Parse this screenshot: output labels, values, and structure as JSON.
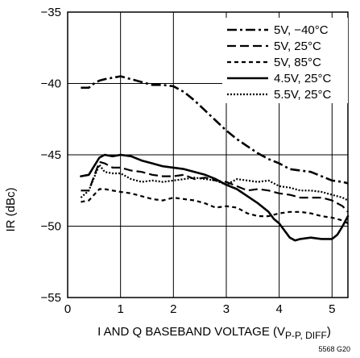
{
  "chart_data": {
    "type": "line",
    "title": "",
    "xlabel_main": "I AND Q BASEBAND VOLTAGE (V",
    "xlabel_sub": "P-P, DIFF",
    "xlabel_end": ")",
    "ylabel": "IR (dBc)",
    "xlim": [
      0,
      5.3
    ],
    "ylim": [
      -55,
      -35
    ],
    "xticks": [
      0,
      1,
      2,
      3,
      4,
      5
    ],
    "yticks": [
      -55,
      -50,
      -45,
      -40,
      -35
    ],
    "xtick_labels": [
      "0",
      "1",
      "2",
      "3",
      "4",
      "5"
    ],
    "ytick_labels": [
      "−55",
      "−50",
      "−45",
      "−40",
      "−35"
    ],
    "grid": true,
    "legend_position": "top-right",
    "figure_code": "5568 G20",
    "series": [
      {
        "name": "5V, −40°C",
        "dash": "dashdot",
        "x": [
          0.25,
          0.4,
          0.5,
          0.6,
          0.7,
          0.85,
          1.0,
          1.2,
          1.4,
          1.6,
          1.8,
          2.0,
          2.2,
          2.4,
          2.6,
          2.8,
          3.0,
          3.2,
          3.4,
          3.6,
          3.8,
          4.0,
          4.2,
          4.4,
          4.6,
          4.8,
          5.0,
          5.2,
          5.3
        ],
        "y": [
          -40.3,
          -40.3,
          -40.0,
          -39.8,
          -39.7,
          -39.6,
          -39.5,
          -39.7,
          -39.9,
          -40.1,
          -40.1,
          -40.2,
          -40.6,
          -41.2,
          -41.9,
          -42.6,
          -43.3,
          -43.9,
          -44.4,
          -44.9,
          -45.3,
          -45.6,
          -46.0,
          -46.1,
          -46.2,
          -46.5,
          -46.8,
          -46.9,
          -47.0
        ]
      },
      {
        "name": "5V, 25°C",
        "dash": "longdash",
        "x": [
          0.25,
          0.4,
          0.5,
          0.6,
          0.7,
          0.85,
          1.0,
          1.2,
          1.4,
          1.6,
          1.8,
          2.0,
          2.2,
          2.4,
          2.6,
          2.8,
          3.0,
          3.2,
          3.4,
          3.6,
          3.8,
          4.0,
          4.2,
          4.4,
          4.6,
          4.8,
          5.0,
          5.2,
          5.3
        ],
        "y": [
          -47.5,
          -47.5,
          -46.5,
          -45.5,
          -45.6,
          -45.9,
          -45.9,
          -46.1,
          -46.2,
          -46.4,
          -46.5,
          -46.5,
          -46.4,
          -46.7,
          -46.6,
          -46.8,
          -46.9,
          -47.2,
          -47.5,
          -47.4,
          -47.5,
          -47.7,
          -47.8,
          -48.0,
          -48.0,
          -48.0,
          -48.2,
          -48.6,
          -49.0
        ]
      },
      {
        "name": "5V, 85°C",
        "dash": "shortdash",
        "x": [
          0.25,
          0.4,
          0.5,
          0.6,
          0.7,
          0.85,
          1.0,
          1.2,
          1.4,
          1.6,
          1.8,
          2.0,
          2.2,
          2.4,
          2.6,
          2.8,
          3.0,
          3.2,
          3.4,
          3.6,
          3.8,
          4.0,
          4.2,
          4.4,
          4.6,
          4.8,
          5.0,
          5.2,
          5.3
        ],
        "y": [
          -48.3,
          -48.2,
          -47.8,
          -47.4,
          -47.4,
          -47.5,
          -47.6,
          -47.7,
          -47.9,
          -48.1,
          -48.2,
          -48.0,
          -48.1,
          -48.2,
          -48.4,
          -48.7,
          -48.6,
          -48.7,
          -49.1,
          -49.3,
          -49.3,
          -49.1,
          -49.0,
          -49.0,
          -49.1,
          -49.3,
          -49.4,
          -49.6,
          -49.8
        ]
      },
      {
        "name": "4.5V, 25°C",
        "dash": "solid",
        "x": [
          0.25,
          0.4,
          0.5,
          0.6,
          0.7,
          0.85,
          1.0,
          1.2,
          1.4,
          1.6,
          1.8,
          2.0,
          2.2,
          2.4,
          2.6,
          2.8,
          3.0,
          3.2,
          3.4,
          3.6,
          3.8,
          3.9,
          4.0,
          4.1,
          4.2,
          4.3,
          4.4,
          4.6,
          4.8,
          5.0,
          5.1,
          5.2,
          5.3
        ],
        "y": [
          -46.5,
          -46.4,
          -45.8,
          -45.2,
          -45.0,
          -45.1,
          -45.0,
          -45.1,
          -45.4,
          -45.6,
          -45.8,
          -45.9,
          -46.0,
          -46.2,
          -46.4,
          -46.7,
          -47.1,
          -47.4,
          -47.9,
          -48.4,
          -49.0,
          -49.5,
          -49.8,
          -50.3,
          -50.8,
          -51.0,
          -50.9,
          -50.8,
          -50.9,
          -50.9,
          -50.6,
          -50.0,
          -49.3
        ]
      },
      {
        "name": "5.5V, 25°C",
        "dash": "dotted",
        "x": [
          0.25,
          0.4,
          0.5,
          0.6,
          0.7,
          0.85,
          1.0,
          1.2,
          1.4,
          1.6,
          1.8,
          2.0,
          2.2,
          2.4,
          2.6,
          2.8,
          3.0,
          3.2,
          3.4,
          3.6,
          3.8,
          4.0,
          4.2,
          4.4,
          4.6,
          4.8,
          5.0,
          5.2,
          5.3
        ],
        "y": [
          -48.0,
          -47.5,
          -46.6,
          -45.7,
          -46.2,
          -46.3,
          -46.3,
          -46.7,
          -46.9,
          -46.8,
          -46.9,
          -46.8,
          -46.7,
          -46.6,
          -46.7,
          -46.8,
          -47.1,
          -46.7,
          -46.8,
          -46.9,
          -46.8,
          -47.2,
          -47.3,
          -47.5,
          -47.5,
          -47.6,
          -47.8,
          -48.0,
          -48.2
        ]
      }
    ]
  },
  "colors": {
    "line": "#000000",
    "grid": "#000000",
    "background": "#ffffff"
  }
}
